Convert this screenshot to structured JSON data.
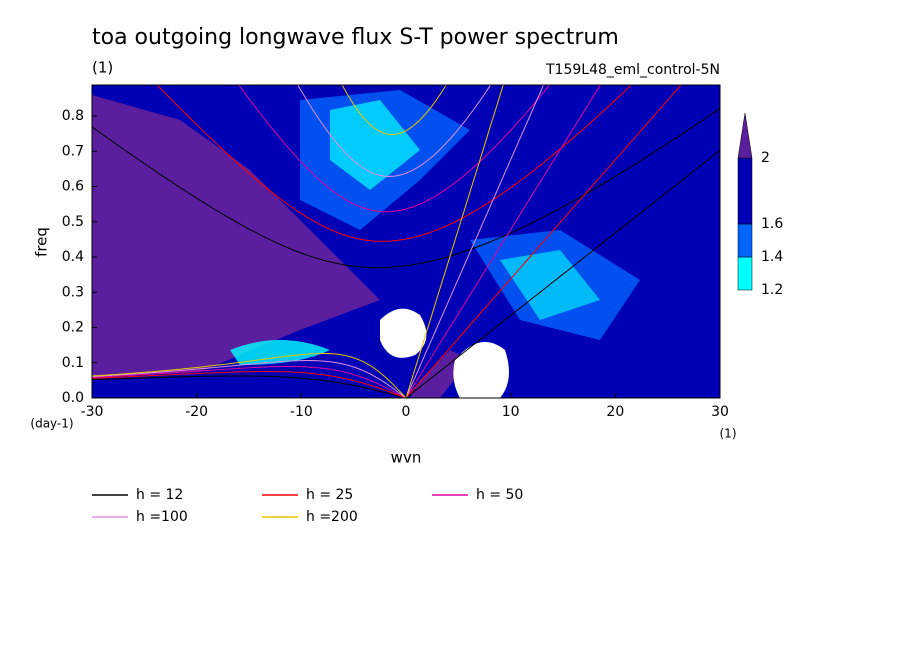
{
  "chart_data": {
    "type": "dispersion",
    "title": "toa outgoing longwave flux S-T power spectrum",
    "subtitle": "(1)",
    "run_label": "T159L48_eml_control-5N",
    "x_label": "wvn",
    "y_label": "freq",
    "x_units": "(1)",
    "y_units": "(day-1)",
    "xlim": [
      -30,
      30
    ],
    "xticks": [
      -30,
      -20,
      -10,
      0,
      10,
      20,
      30
    ],
    "ylim": [
      0,
      0.888
    ],
    "yticks": [
      {
        "value": 0,
        "label": "0.0"
      },
      0.1,
      0.2,
      0.3,
      0.4,
      0.5,
      0.6,
      0.7,
      0.8
    ],
    "series": [
      {
        "name": "h = 12",
        "h": 12,
        "color": "#000000"
      },
      {
        "name": "h = 25",
        "h": 25,
        "color": "#ff0000"
      },
      {
        "name": "h = 50",
        "h": 50,
        "color": "#e000a0"
      },
      {
        "name": "h =100",
        "h": 100,
        "color": "#e090e0"
      },
      {
        "name": "h =200",
        "h": 200,
        "color": "#e6c800"
      }
    ],
    "colorbar": {
      "levels": [
        1.2,
        1.4,
        1.6,
        2
      ],
      "colors": [
        "#00ffff",
        "#0064ff",
        "#0000b4",
        "#5a1e9e"
      ]
    }
  }
}
